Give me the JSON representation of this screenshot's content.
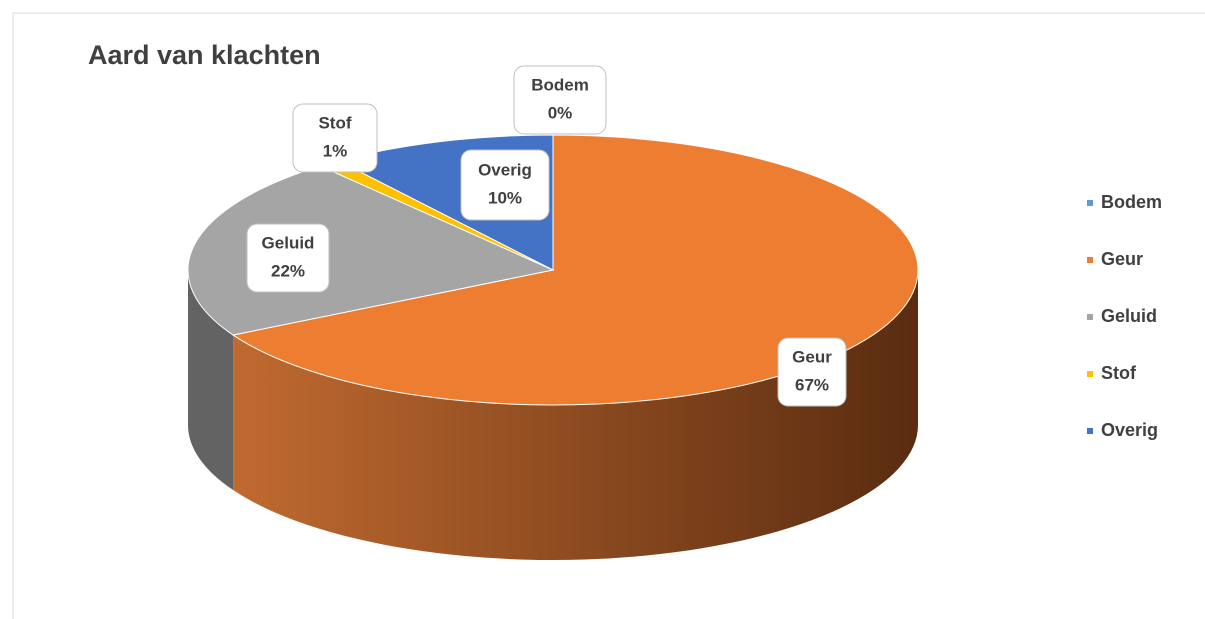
{
  "chart_data": {
    "type": "pie",
    "title": "Aard van klachten",
    "categories": [
      "Bodem",
      "Geur",
      "Geluid",
      "Stof",
      "Overig"
    ],
    "values": [
      0,
      67,
      22,
      1,
      10
    ],
    "value_labels": [
      "0%",
      "67%",
      "22%",
      "1%",
      "10%"
    ],
    "colors": [
      "#5b9bd5",
      "#ed7d31",
      "#a5a5a5",
      "#ffc000",
      "#4472c4"
    ],
    "legend": "right"
  }
}
